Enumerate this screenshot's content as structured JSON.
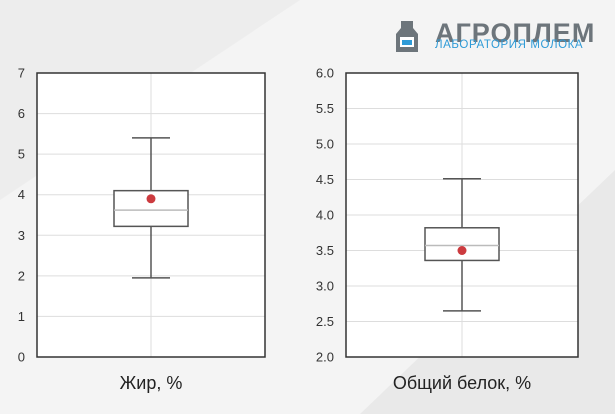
{
  "logo": {
    "brand": "АГРОПЛЕМ",
    "subtitle": "ЛАБОРАТОРИЯ МОЛОКА",
    "icon": "milk-bottle-icon",
    "colors": {
      "brand": "#6d757b",
      "subtitle": "#2f9bd7"
    }
  },
  "chart_data": [
    {
      "type": "box",
      "xlabel": "Жир, %",
      "ylim": [
        0,
        7
      ],
      "yticks": [
        "0",
        "1",
        "2",
        "3",
        "4",
        "5",
        "6",
        "7"
      ],
      "grid": true,
      "box": {
        "whisker_low": 1.95,
        "q1": 3.22,
        "median": 3.62,
        "q3": 4.1,
        "whisker_high": 5.4,
        "mean": 3.9
      },
      "colors": {
        "mean_marker": "#cc3b3f",
        "box": "#555555"
      }
    },
    {
      "type": "box",
      "xlabel": "Общий белок, %",
      "ylim": [
        2.0,
        6.0
      ],
      "yticks": [
        "2.0",
        "2.5",
        "3.0",
        "3.5",
        "4.0",
        "4.5",
        "5.0",
        "5.5",
        "6.0"
      ],
      "grid": true,
      "box": {
        "whisker_low": 2.65,
        "q1": 3.36,
        "median": 3.57,
        "q3": 3.82,
        "whisker_high": 4.51,
        "mean": 3.5
      },
      "colors": {
        "mean_marker": "#cc3b3f",
        "box": "#555555"
      }
    }
  ]
}
